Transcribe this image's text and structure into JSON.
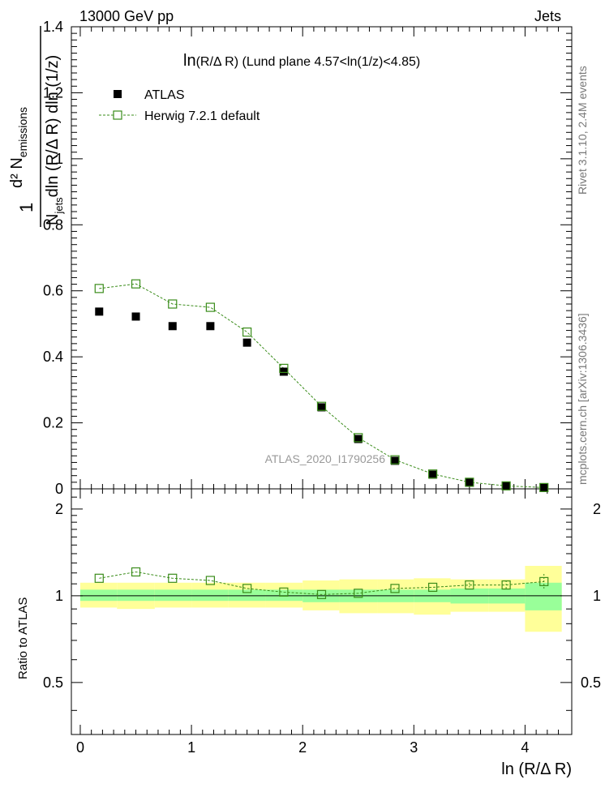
{
  "header": {
    "left": "13000 GeV pp",
    "right": "Jets"
  },
  "side_labels": {
    "rivet": "Rivet 3.1.10,  2.4M events",
    "mcplots": "mcplots.cern.ch [arXiv:1306.3436]"
  },
  "colors": {
    "atlas": "#000000",
    "herwig": "#3a8c1a",
    "band_inner": "#99ff99",
    "band_outer": "#ffff99"
  },
  "chart_data": {
    "type": "scatter",
    "title_prefix": "ln",
    "title": "(R/Δ R) (Lund plane 4.57<ln(1/z)<4.85)",
    "watermark": "ATLAS_2020_I1790256",
    "xlabel": "ln (R/Δ R)",
    "xlim": [
      -0.08,
      4.42
    ],
    "x_ticks": [
      "0",
      "1",
      "2",
      "3",
      "4"
    ],
    "main": {
      "ylabel_frac_num": "1",
      "ylabel_num_main": "d² N",
      "ylabel_num_sub": "emissions",
      "ylabel_den_main1": "N",
      "ylabel_den_sub": "jets",
      "ylabel_den_main2": "dln (R/Δ R) dln (1/z)",
      "ylim": [
        0,
        1.4
      ],
      "y_ticks": [
        "0",
        "0.2",
        "0.4",
        "0.6",
        "0.8",
        "1",
        "1.2",
        "1.4"
      ],
      "legend": [
        {
          "label": "ATLAS",
          "marker": "filled-square"
        },
        {
          "label": "Herwig 7.2.1 default",
          "marker": "open-square-dashed"
        }
      ],
      "series": [
        {
          "name": "ATLAS",
          "x": [
            0.17,
            0.5,
            0.83,
            1.17,
            1.5,
            1.83,
            2.17,
            2.5,
            2.83,
            3.17,
            3.5,
            3.83,
            4.17
          ],
          "values": [
            0.537,
            0.522,
            0.493,
            0.493,
            0.443,
            0.355,
            0.247,
            0.151,
            0.085,
            0.043,
            0.019,
            0.009,
            0.004
          ]
        },
        {
          "name": "Herwig 7.2.1 default",
          "x": [
            0.17,
            0.5,
            0.83,
            1.17,
            1.5,
            1.83,
            2.17,
            2.5,
            2.83,
            3.17,
            3.5,
            3.83,
            4.17
          ],
          "values": [
            0.607,
            0.621,
            0.56,
            0.55,
            0.475,
            0.365,
            0.25,
            0.155,
            0.088,
            0.045,
            0.02,
            0.009,
            0.004
          ]
        }
      ]
    },
    "ratio": {
      "ylabel": "Ratio to ATLAS",
      "ylim": [
        0.33,
        2.35
      ],
      "y_ticks": [
        "0.5",
        "1",
        "2"
      ],
      "herwig_ratio": [
        1.15,
        1.21,
        1.15,
        1.13,
        1.06,
        1.03,
        1.01,
        1.02,
        1.06,
        1.07,
        1.09,
        1.09,
        1.12
      ],
      "herwig_ratio_err": [
        0.01,
        0.01,
        0.01,
        0.01,
        0.01,
        0.01,
        0.01,
        0.01,
        0.01,
        0.01,
        0.02,
        0.04,
        0.07
      ],
      "bins": [
        {
          "lo": 0.0,
          "hi": 0.33,
          "inner": [
            0.96,
            1.05
          ],
          "outer": [
            0.91,
            1.11
          ]
        },
        {
          "lo": 0.33,
          "hi": 0.67,
          "inner": [
            0.96,
            1.05
          ],
          "outer": [
            0.9,
            1.11
          ]
        },
        {
          "lo": 0.67,
          "hi": 1.0,
          "inner": [
            0.96,
            1.05
          ],
          "outer": [
            0.91,
            1.11
          ]
        },
        {
          "lo": 1.0,
          "hi": 1.33,
          "inner": [
            0.96,
            1.05
          ],
          "outer": [
            0.91,
            1.11
          ]
        },
        {
          "lo": 1.33,
          "hi": 1.67,
          "inner": [
            0.96,
            1.05
          ],
          "outer": [
            0.91,
            1.11
          ]
        },
        {
          "lo": 1.67,
          "hi": 2.0,
          "inner": [
            0.96,
            1.05
          ],
          "outer": [
            0.91,
            1.11
          ]
        },
        {
          "lo": 2.0,
          "hi": 2.33,
          "inner": [
            0.95,
            1.05
          ],
          "outer": [
            0.89,
            1.13
          ]
        },
        {
          "lo": 2.33,
          "hi": 2.67,
          "inner": [
            0.95,
            1.05
          ],
          "outer": [
            0.87,
            1.14
          ]
        },
        {
          "lo": 2.67,
          "hi": 3.0,
          "inner": [
            0.95,
            1.05
          ],
          "outer": [
            0.87,
            1.14
          ]
        },
        {
          "lo": 3.0,
          "hi": 3.33,
          "inner": [
            0.95,
            1.05
          ],
          "outer": [
            0.86,
            1.15
          ]
        },
        {
          "lo": 3.33,
          "hi": 3.67,
          "inner": [
            0.94,
            1.06
          ],
          "outer": [
            0.88,
            1.14
          ]
        },
        {
          "lo": 3.67,
          "hi": 4.0,
          "inner": [
            0.94,
            1.06
          ],
          "outer": [
            0.88,
            1.14
          ]
        },
        {
          "lo": 4.0,
          "hi": 4.33,
          "inner": [
            0.89,
            1.11
          ],
          "outer": [
            0.75,
            1.27
          ]
        }
      ]
    }
  }
}
